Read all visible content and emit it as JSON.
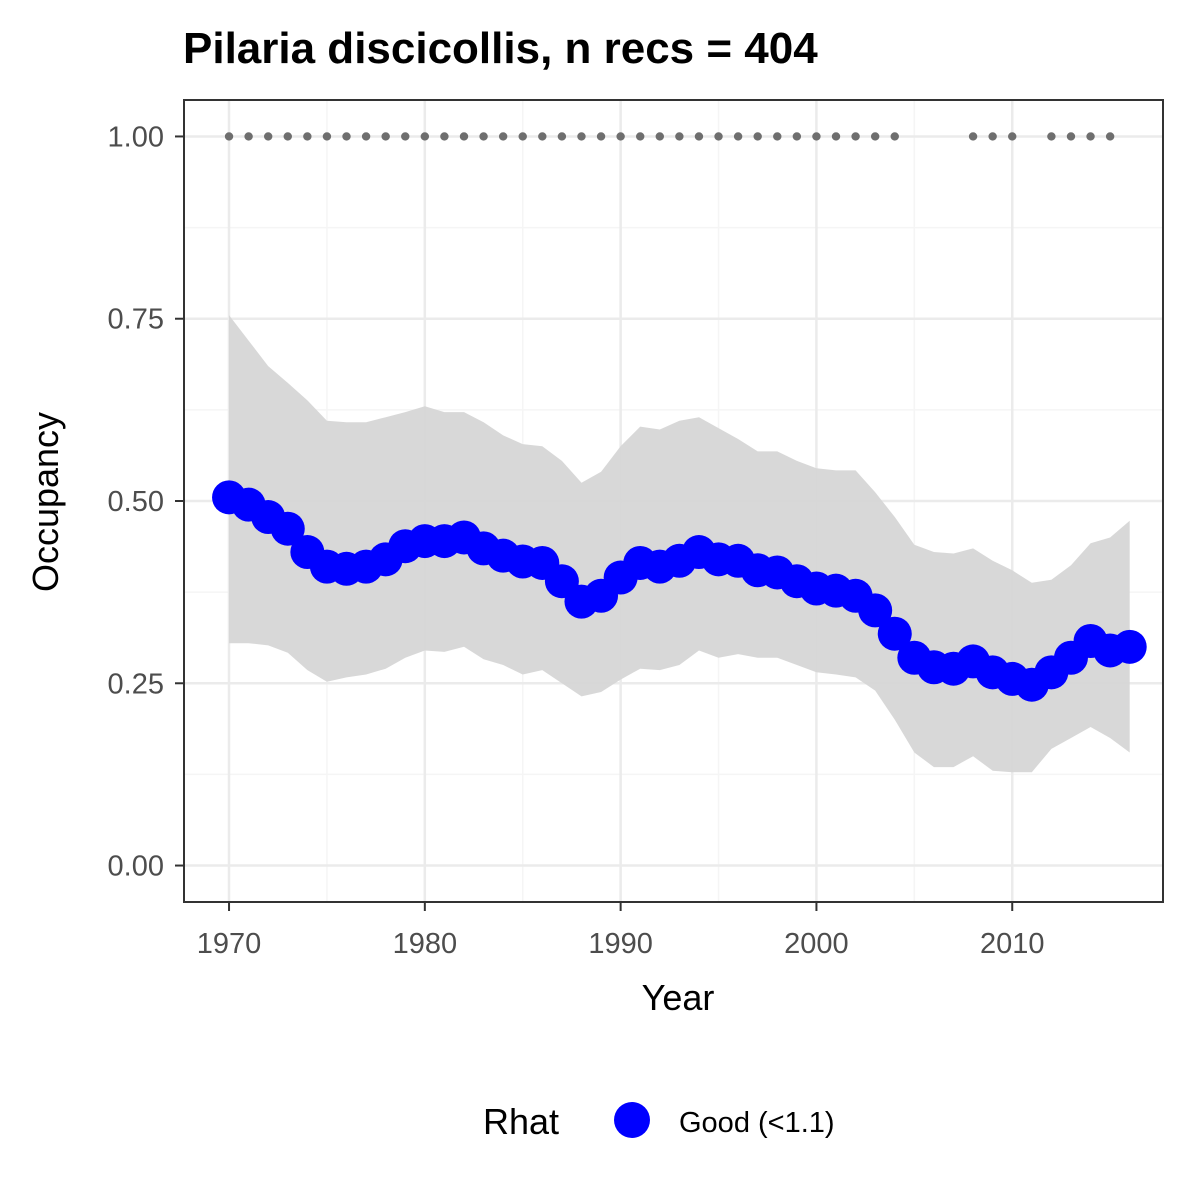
{
  "chart_data": {
    "type": "line",
    "title": "Pilaria discicollis, n recs = 404",
    "xlabel": "Year",
    "ylabel": "Occupancy",
    "xlim": [
      1967.7,
      2017.7
    ],
    "ylim": [
      -0.05,
      1.05
    ],
    "x_ticks": [
      "1970",
      "1980",
      "1990",
      "2000",
      "2010"
    ],
    "y_ticks": [
      "0.00",
      "0.25",
      "0.50",
      "0.75",
      "1.00"
    ],
    "grid": true,
    "colors": {
      "points": "#0000ff",
      "band": "#d6d6d6",
      "record_dots": "#6e6e6e",
      "major_grid": "#ebebeb",
      "minor_grid": "#f5f5f5",
      "panel_border": "#333333"
    },
    "series": [
      {
        "x": [
          1970,
          1971,
          1972,
          1973,
          1974,
          1975,
          1976,
          1977,
          1978,
          1979,
          1980,
          1981,
          1982,
          1983,
          1984,
          1985,
          1986,
          1987,
          1988,
          1989,
          1990,
          1991,
          1992,
          1993,
          1994,
          1995,
          1996,
          1997,
          1998,
          1999,
          2000,
          2001,
          2002,
          2003,
          2004,
          2005,
          2006,
          2007,
          2008,
          2009,
          2010,
          2011,
          2012,
          2013,
          2014,
          2015,
          2016
        ],
        "values": [
          0.505,
          0.495,
          0.478,
          0.462,
          0.43,
          0.41,
          0.407,
          0.41,
          0.42,
          0.438,
          0.445,
          0.445,
          0.45,
          0.435,
          0.425,
          0.417,
          0.415,
          0.39,
          0.362,
          0.37,
          0.395,
          0.415,
          0.41,
          0.418,
          0.43,
          0.42,
          0.418,
          0.405,
          0.402,
          0.39,
          0.38,
          0.377,
          0.37,
          0.35,
          0.318,
          0.285,
          0.272,
          0.27,
          0.28,
          0.265,
          0.256,
          0.248,
          0.265,
          0.285,
          0.308,
          0.295,
          0.3
        ],
        "lower": [
          0.305,
          0.305,
          0.302,
          0.292,
          0.268,
          0.252,
          0.258,
          0.262,
          0.27,
          0.285,
          0.295,
          0.293,
          0.3,
          0.283,
          0.275,
          0.262,
          0.268,
          0.25,
          0.232,
          0.238,
          0.255,
          0.27,
          0.268,
          0.275,
          0.295,
          0.285,
          0.29,
          0.285,
          0.285,
          0.275,
          0.265,
          0.262,
          0.258,
          0.24,
          0.2,
          0.155,
          0.135,
          0.135,
          0.15,
          0.13,
          0.128,
          0.128,
          0.16,
          0.175,
          0.19,
          0.175,
          0.155
        ],
        "upper": [
          0.755,
          0.72,
          0.685,
          0.662,
          0.638,
          0.61,
          0.608,
          0.608,
          0.615,
          0.622,
          0.63,
          0.622,
          0.622,
          0.608,
          0.59,
          0.578,
          0.575,
          0.555,
          0.525,
          0.54,
          0.575,
          0.602,
          0.598,
          0.61,
          0.615,
          0.6,
          0.585,
          0.568,
          0.568,
          0.555,
          0.545,
          0.542,
          0.542,
          0.512,
          0.478,
          0.44,
          0.43,
          0.428,
          0.435,
          0.418,
          0.405,
          0.388,
          0.392,
          0.412,
          0.442,
          0.45,
          0.473
        ]
      }
    ],
    "record_years": [
      1970,
      1971,
      1972,
      1973,
      1974,
      1975,
      1976,
      1977,
      1978,
      1979,
      1980,
      1981,
      1982,
      1983,
      1984,
      1985,
      1986,
      1987,
      1988,
      1989,
      1990,
      1991,
      1992,
      1993,
      1994,
      1995,
      1996,
      1997,
      1998,
      1999,
      2000,
      2001,
      2002,
      2003,
      2004,
      2008,
      2009,
      2010,
      2012,
      2013,
      2014,
      2015
    ],
    "record_level": 1.0,
    "legend": {
      "title": "Rhat",
      "items": [
        {
          "label": "Good (<1.1)",
          "color": "#0000ff"
        }
      ],
      "position": "bottom"
    }
  }
}
